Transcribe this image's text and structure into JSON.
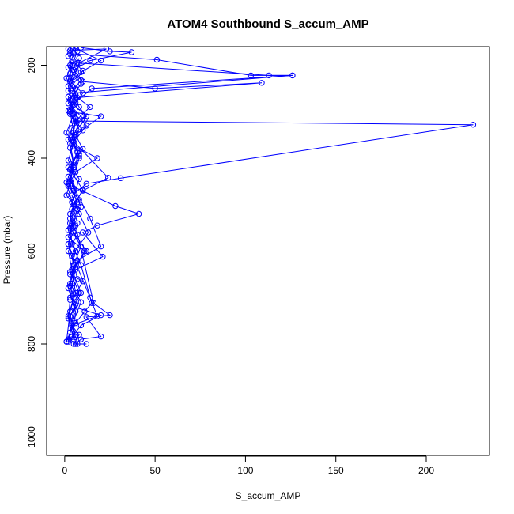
{
  "chart_data": {
    "type": "line",
    "title": "ATOM4 Southbound S_accum_AMP",
    "xlabel": "S_accum_AMP",
    "ylabel": "Pressure (mbar)",
    "xlim": [
      -10,
      235
    ],
    "ylim": [
      1040,
      160
    ],
    "y_reversed": true,
    "grid": false,
    "x_ticks": [
      0,
      50,
      100,
      150,
      200
    ],
    "y_ticks": [
      200,
      400,
      600,
      800,
      1000
    ],
    "color": "#0000ff",
    "markers": "open-circle",
    "series": [
      {
        "x": [
          4,
          20,
          9,
          3,
          10,
          5,
          12,
          4,
          2,
          8,
          5,
          3,
          1,
          7,
          4,
          2,
          11,
          6,
          3,
          9,
          5,
          2
        ],
        "y": [
          160,
          190,
          215,
          235,
          260,
          285,
          310,
          335,
          360,
          390,
          420,
          450,
          480,
          510,
          540,
          570,
          600,
          635,
          670,
          710,
          750,
          790
        ]
      },
      {
        "x": [
          2,
          7,
          113,
          126,
          15,
          6,
          3,
          10,
          4,
          18,
          6,
          2,
          8,
          3,
          5,
          12,
          4,
          9,
          3,
          6
        ],
        "y": [
          165,
          195,
          222,
          222,
          250,
          280,
          305,
          340,
          370,
          400,
          430,
          460,
          490,
          520,
          560,
          600,
          640,
          690,
          740,
          780
        ]
      },
      {
        "x": [
          6,
          3,
          51,
          103,
          126,
          4,
          8,
          12,
          5,
          226,
          31,
          12,
          4,
          7,
          3,
          9,
          5,
          2,
          6,
          4
        ],
        "y": [
          160,
          175,
          188,
          222,
          222,
          260,
          290,
          310,
          320,
          328,
          443,
          455,
          480,
          510,
          550,
          590,
          630,
          680,
          730,
          790
        ]
      },
      {
        "x": [
          9,
          25,
          37,
          14,
          5,
          10,
          50,
          109,
          6,
          3,
          20,
          6,
          10,
          2,
          5,
          8,
          13,
          4,
          7,
          3
        ],
        "y": [
          162,
          170,
          172,
          190,
          210,
          235,
          250,
          238,
          270,
          300,
          310,
          350,
          380,
          420,
          470,
          520,
          560,
          610,
          660,
          700
        ]
      },
      {
        "x": [
          3,
          23,
          8,
          5,
          2,
          14,
          6,
          4,
          24,
          10,
          5,
          3,
          7,
          2,
          4,
          6,
          3,
          1
        ],
        "y": [
          168,
          165,
          195,
          225,
          255,
          290,
          320,
          360,
          442,
          470,
          500,
          530,
          565,
          600,
          640,
          690,
          730,
          795
        ]
      },
      {
        "x": [
          7,
          4,
          2,
          6,
          3,
          5,
          8,
          4,
          28,
          41,
          18,
          10,
          21,
          6,
          4,
          3,
          2,
          5
        ],
        "y": [
          170,
          200,
          230,
          265,
          300,
          345,
          400,
          460,
          503,
          520,
          545,
          560,
          612,
          640,
          670,
          705,
          745,
          790
        ]
      },
      {
        "x": [
          5,
          2,
          9,
          3,
          6,
          4,
          8,
          2,
          14,
          20,
          7,
          3,
          10,
          5,
          2,
          6
        ],
        "y": [
          175,
          205,
          240,
          275,
          315,
          355,
          395,
          440,
          530,
          590,
          620,
          650,
          665,
          700,
          740,
          785
        ]
      },
      {
        "x": [
          2,
          10,
          4,
          7,
          3,
          12,
          5,
          2,
          8,
          4,
          6,
          16,
          25,
          12,
          20,
          9,
          6,
          12,
          7
        ],
        "y": [
          180,
          212,
          245,
          270,
          295,
          330,
          365,
          405,
          445,
          495,
          545,
          712,
          738,
          742,
          784,
          790,
          800,
          800,
          800
        ]
      },
      {
        "x": [
          8,
          3,
          6,
          2,
          11,
          4,
          7,
          3,
          5,
          9,
          4,
          2,
          6,
          14,
          18,
          4,
          8,
          5
        ],
        "y": [
          185,
          218,
          250,
          282,
          318,
          352,
          388,
          425,
          465,
          505,
          545,
          585,
          625,
          700,
          740,
          760,
          780,
          800
        ]
      },
      {
        "x": [
          4,
          1,
          6,
          2,
          8,
          3,
          5,
          2,
          7,
          3,
          4,
          9,
          15,
          11,
          6,
          3,
          1
        ],
        "y": [
          192,
          228,
          262,
          298,
          338,
          378,
          415,
          455,
          495,
          540,
          585,
          630,
          712,
          730,
          755,
          775,
          795
        ]
      },
      {
        "x": [
          3,
          9,
          2,
          5,
          1,
          7,
          3,
          10,
          4,
          2,
          6,
          3,
          8,
          5,
          20,
          9,
          4
        ],
        "y": [
          200,
          232,
          268,
          305,
          345,
          385,
          425,
          468,
          510,
          555,
          600,
          645,
          690,
          720,
          738,
          760,
          785
        ]
      },
      {
        "x": [
          6,
          2,
          4,
          8,
          3,
          5,
          1,
          4,
          7,
          2,
          5,
          3,
          6,
          4,
          2
        ],
        "y": [
          208,
          245,
          285,
          325,
          368,
          410,
          452,
          495,
          540,
          585,
          630,
          675,
          715,
          755,
          795
        ]
      }
    ]
  }
}
